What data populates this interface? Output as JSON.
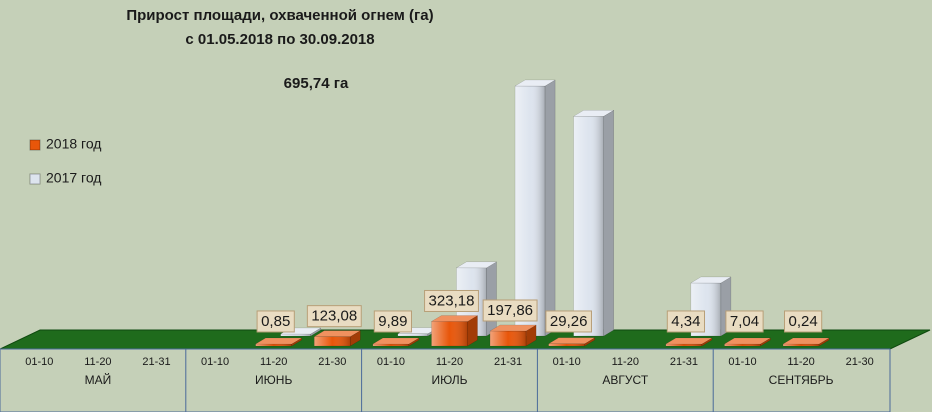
{
  "chart_data": {
    "type": "bar3d",
    "title": "Прирост площади, охваченной огнем (га)",
    "subtitle": "с 01.05.2018  по  30.09.2018",
    "annotation": "695,74 га",
    "categories": [
      "01-10",
      "11-20",
      "21-31",
      "01-10",
      "11-20",
      "21-30",
      "01-10",
      "11-20",
      "21-31",
      "01-10",
      "11-20",
      "21-31",
      "01-10",
      "11-20",
      "21-30"
    ],
    "months": [
      "МАЙ",
      "ИЮНЬ",
      "ИЮЛЬ",
      "АВГУСТ",
      "СЕНТЯБРЬ"
    ],
    "series": [
      {
        "name": "2018 год",
        "color": "#e8560a",
        "values": [
          null,
          null,
          null,
          null,
          0.85,
          123.08,
          9.89,
          323.18,
          197.86,
          29.26,
          null,
          4.34,
          7.04,
          0.24,
          null
        ],
        "value_labels": [
          null,
          null,
          null,
          null,
          "0,85",
          "123,08",
          "9,89",
          "323,18",
          "197,86",
          "29,26",
          null,
          "4,34",
          "7,04",
          "0,24",
          null
        ]
      },
      {
        "name": "2017 год",
        "color": "#dde4ee",
        "values": [
          null,
          null,
          null,
          null,
          10,
          null,
          30,
          900,
          3300,
          2900,
          null,
          700,
          null,
          null,
          null
        ]
      }
    ]
  }
}
